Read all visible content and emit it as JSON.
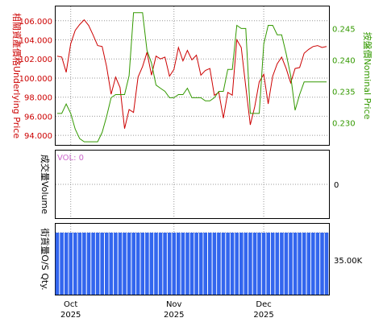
{
  "chart_data": [
    {
      "type": "line",
      "panel": "price",
      "x": [
        "2025-09-26",
        "2025-09-29",
        "2025-09-30",
        "2025-10-01",
        "2025-10-02",
        "2025-10-03",
        "2025-10-06",
        "2025-10-07",
        "2025-10-08",
        "2025-10-09",
        "2025-10-10",
        "2025-10-13",
        "2025-10-14",
        "2025-10-15",
        "2025-10-16",
        "2025-10-17",
        "2025-10-20",
        "2025-10-21",
        "2025-10-22",
        "2025-10-23",
        "2025-10-24",
        "2025-10-27",
        "2025-10-28",
        "2025-10-29",
        "2025-10-30",
        "2025-10-31",
        "2025-11-03",
        "2025-11-04",
        "2025-11-05",
        "2025-11-06",
        "2025-11-07",
        "2025-11-10",
        "2025-11-11",
        "2025-11-12",
        "2025-11-13",
        "2025-11-14",
        "2025-11-17",
        "2025-11-18",
        "2025-11-19",
        "2025-11-20",
        "2025-11-21",
        "2025-11-24",
        "2025-11-25",
        "2025-11-26",
        "2025-11-27",
        "2025-11-28",
        "2025-12-01",
        "2025-12-02",
        "2025-12-03",
        "2025-12-04",
        "2025-12-05",
        "2025-12-08",
        "2025-12-09",
        "2025-12-10",
        "2025-12-11",
        "2025-12-12",
        "2025-12-15",
        "2025-12-16",
        "2025-12-17",
        "2025-12-18",
        "2025-12-19"
      ],
      "ylabel": "相關資產價格Underlying Price",
      "y2label": "按盤價Nominal Price",
      "ylim": [
        93,
        107.5
      ],
      "y2lim": [
        0.2265,
        0.2485
      ],
      "yticks": [
        "94.000",
        "96.000",
        "98.000",
        "100.000",
        "102.000",
        "104.000",
        "106.000"
      ],
      "y2ticks": [
        "0.230",
        "0.235",
        "0.240",
        "0.245"
      ],
      "series": [
        {
          "name": "",
          "axis": "left",
          "color": "#cc0000",
          "values": [
            102.3,
            102.2,
            100.6,
            103.6,
            105.0,
            105.6,
            106.1,
            105.5,
            104.5,
            103.4,
            103.3,
            101.2,
            98.3,
            100.1,
            99.0,
            94.7,
            96.7,
            96.4,
            100.1,
            101.2,
            102.7,
            100.3,
            102.3,
            102.0,
            102.2,
            100.2,
            100.9,
            103.2,
            101.8,
            102.9,
            101.9,
            102.4,
            100.3,
            100.8,
            101.0,
            98.2,
            98.5,
            95.8,
            98.5,
            98.2,
            104.0,
            103.2,
            99.1,
            95.1,
            97.0,
            99.6,
            100.4,
            97.3,
            100.2,
            101.5,
            102.2,
            101.0,
            99.5,
            101.0,
            101.1,
            102.6,
            103.0,
            103.3,
            103.4,
            103.2,
            103.3
          ]
        },
        {
          "name": "",
          "axis": "right",
          "color": "#339900",
          "values": [
            0.2315,
            0.2315,
            0.233,
            0.2315,
            0.229,
            0.2275,
            0.227,
            0.227,
            0.227,
            0.227,
            0.2285,
            0.231,
            0.234,
            0.2345,
            0.2345,
            0.2345,
            0.2375,
            0.2475,
            0.2475,
            0.2475,
            0.2415,
            0.2395,
            0.236,
            0.2355,
            0.235,
            0.234,
            0.234,
            0.2345,
            0.2345,
            0.2355,
            0.234,
            0.234,
            0.234,
            0.2335,
            0.2335,
            0.234,
            0.235,
            0.235,
            0.2385,
            0.2385,
            0.2455,
            0.245,
            0.245,
            0.2315,
            0.2315,
            0.2315,
            0.2425,
            0.2455,
            0.2455,
            0.244,
            0.244,
            0.241,
            0.2375,
            0.232,
            0.2345,
            0.2365,
            0.2365,
            0.2365,
            0.2365,
            0.2365,
            0.2365
          ]
        }
      ]
    },
    {
      "type": "line",
      "panel": "volume",
      "ylabel": "成交量Volume",
      "yticks": [
        "0"
      ],
      "annotation": "VOL: 0",
      "ylim": [
        -1,
        1
      ],
      "values": []
    },
    {
      "type": "bar",
      "panel": "outstanding",
      "ylabel": "街貨量O/S Qty.",
      "yticks": [
        "35.00K"
      ],
      "ylim": [
        0,
        40000
      ],
      "color": "#3366ee",
      "x": [
        "2025-09-26",
        "2025-09-29",
        "2025-09-30",
        "2025-10-01",
        "2025-10-02",
        "2025-10-03",
        "2025-10-06",
        "2025-10-07",
        "2025-10-08",
        "2025-10-09",
        "2025-10-10",
        "2025-10-13",
        "2025-10-14",
        "2025-10-15",
        "2025-10-16",
        "2025-10-17",
        "2025-10-20",
        "2025-10-21",
        "2025-10-22",
        "2025-10-23",
        "2025-10-24",
        "2025-10-27",
        "2025-10-28",
        "2025-10-29",
        "2025-10-30",
        "2025-10-31",
        "2025-11-03",
        "2025-11-04",
        "2025-11-05",
        "2025-11-06",
        "2025-11-07",
        "2025-11-10",
        "2025-11-11",
        "2025-11-12",
        "2025-11-13",
        "2025-11-14",
        "2025-11-17",
        "2025-11-18",
        "2025-11-19",
        "2025-11-20",
        "2025-11-21",
        "2025-11-24",
        "2025-11-25",
        "2025-11-26",
        "2025-11-27",
        "2025-11-28",
        "2025-12-01",
        "2025-12-02",
        "2025-12-03",
        "2025-12-04",
        "2025-12-05",
        "2025-12-08",
        "2025-12-09",
        "2025-12-10",
        "2025-12-11",
        "2025-12-12",
        "2025-12-15",
        "2025-12-16",
        "2025-12-17",
        "2025-12-18",
        "2025-12-19"
      ],
      "values": [
        35000,
        35000,
        35000,
        35000,
        35000,
        35000,
        35000,
        35000,
        35000,
        35000,
        35000,
        35000,
        35000,
        35000,
        35000,
        35000,
        35000,
        35000,
        35000,
        35000,
        35000,
        35000,
        35000,
        35000,
        35000,
        35000,
        35000,
        35000,
        35000,
        35000,
        35000,
        35000,
        35000,
        35000,
        35000,
        35000,
        35000,
        35000,
        35000,
        35000,
        35000,
        35000,
        35000,
        35000,
        35000,
        35000,
        35000,
        35000,
        35000,
        35000,
        35000,
        35000,
        35000,
        35000,
        35000,
        35000,
        35000,
        35000,
        35000,
        35000,
        35000
      ]
    }
  ],
  "x_axis": {
    "months": [
      {
        "label": "Oct",
        "year": "2025",
        "date": "2025-10-01"
      },
      {
        "label": "Nov",
        "year": "2025",
        "date": "2025-11-03"
      },
      {
        "label": "Dec",
        "year": "2025",
        "date": "2025-12-01"
      }
    ]
  },
  "colors": {
    "left_axis": "#cc0000",
    "right_axis": "#339900",
    "annotation": "#cc66cc",
    "grid": "#999999"
  }
}
